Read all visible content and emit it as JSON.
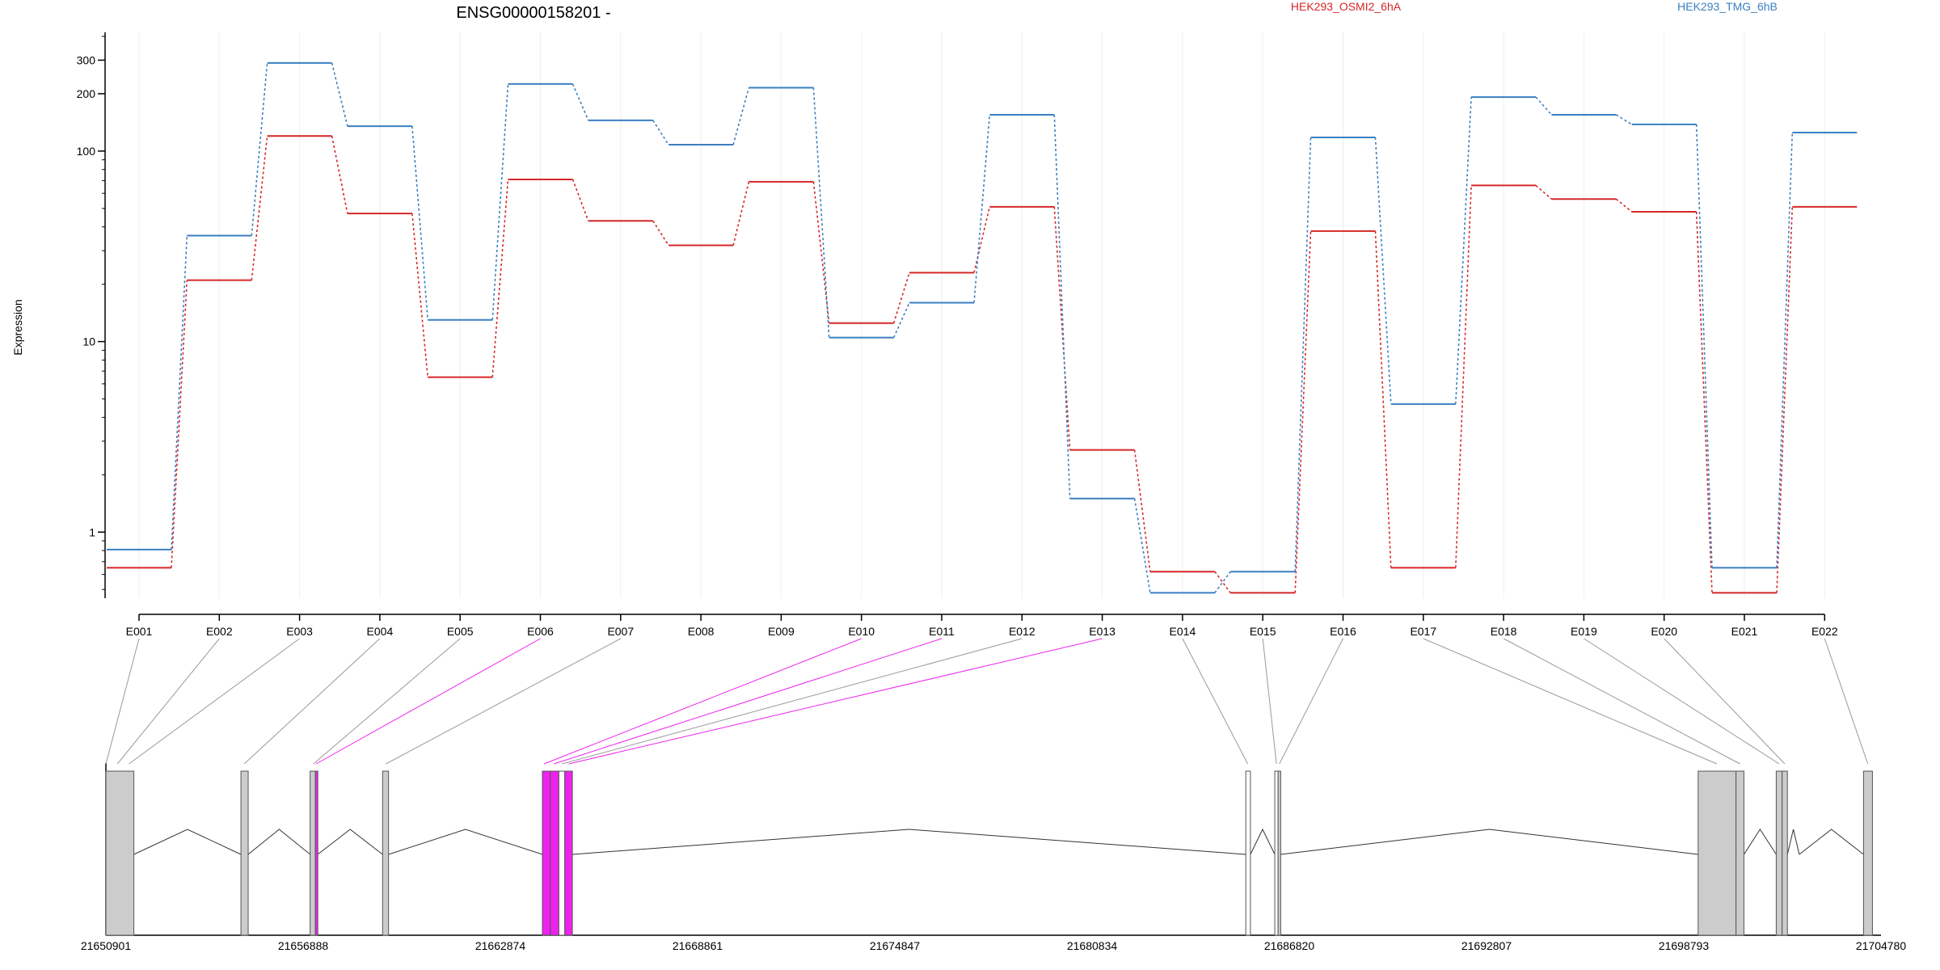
{
  "chart_data": {
    "type": "line",
    "title": "ENSG00000158201 -",
    "ylabel": "Expression",
    "yscale": "log",
    "ylim": [
      0.45,
      420
    ],
    "yticks": [
      1,
      10,
      100,
      200,
      300
    ],
    "ytick_labels": [
      "1",
      "10",
      "100",
      "200",
      "300"
    ],
    "categories": [
      "E001",
      "E002",
      "E003",
      "E004",
      "E005",
      "E006",
      "E007",
      "E008",
      "E009",
      "E010",
      "E011",
      "E012",
      "E013",
      "E014",
      "E015",
      "E016",
      "E017",
      "E018",
      "E019",
      "E020",
      "E021",
      "E022"
    ],
    "grid": true,
    "legend_placement": "top",
    "series": [
      {
        "name": "HEK293_OSMI2_6hA",
        "color": "#d62728",
        "values": [
          0.65,
          21,
          120,
          47,
          6.5,
          71,
          43,
          32,
          69,
          12.5,
          23,
          51,
          2.7,
          0.62,
          0.48,
          38,
          0.65,
          66,
          56,
          48,
          0.48,
          51
        ]
      },
      {
        "name": "HEK293_TMG_6hB",
        "color": "#3a7fc1",
        "values": [
          0.81,
          36,
          290,
          135,
          13,
          225,
          145,
          108,
          215,
          10.5,
          16,
          155,
          1.5,
          0.48,
          0.62,
          118,
          4.7,
          192,
          155,
          138,
          0.65,
          125
        ]
      }
    ],
    "genome": {
      "coordinate_ticks": [
        21650901,
        21656888,
        21662874,
        21668861,
        21674847,
        21680834,
        21686820,
        21692807,
        21698793,
        21704780
      ],
      "range": [
        21650901,
        21704780
      ],
      "highlight_color": "#ee22ee"
    }
  }
}
